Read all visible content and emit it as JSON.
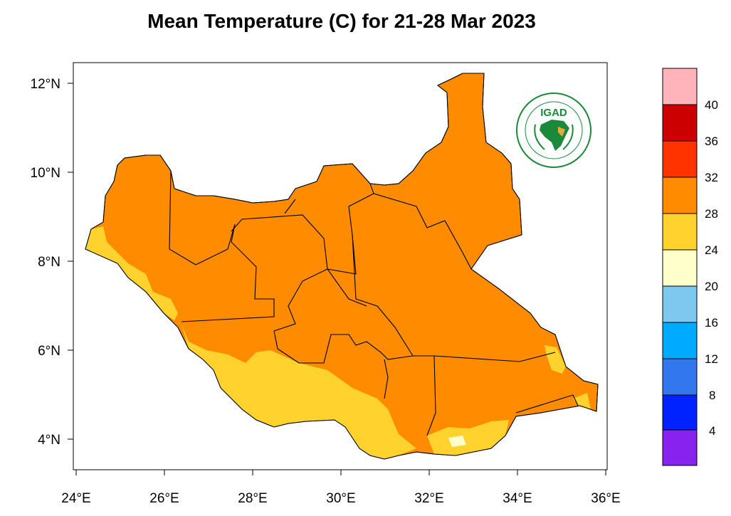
{
  "title": "Mean Temperature (C) for 21-28 Mar 2023",
  "map": {
    "lon_ticks": [
      "24°E",
      "26°E",
      "28°E",
      "30°E",
      "32°E",
      "34°E",
      "36°E"
    ],
    "lat_ticks": [
      "12°N",
      "10°N",
      "8°N",
      "6°N",
      "4°N"
    ],
    "lon_range": [
      24,
      36
    ],
    "lat_range": [
      3.3,
      12.4
    ],
    "dominant_class": "28-32",
    "southern_class": "24-28",
    "logo": {
      "name": "IGAD",
      "ring_text_top": "INTERGOVERNMENTAL AUTHORITY ON DEVELOPMENT",
      "ring_text_bottom": "AUTORITÉ INTERGOUVERNEMENTALE POUR LE DÉVELOPPEMENT"
    }
  },
  "colorbar": {
    "labels": [
      "40",
      "36",
      "32",
      "28",
      "24",
      "20",
      "16",
      "12",
      "8",
      "4"
    ],
    "colors": [
      "#ffb3ba",
      "#cc0000",
      "#ff3300",
      "#ff8c00",
      "#ffd22e",
      "#ffffcc",
      "#7ec8f0",
      "#00aaff",
      "#3377ee",
      "#0022ff",
      "#8822ee"
    ]
  }
}
